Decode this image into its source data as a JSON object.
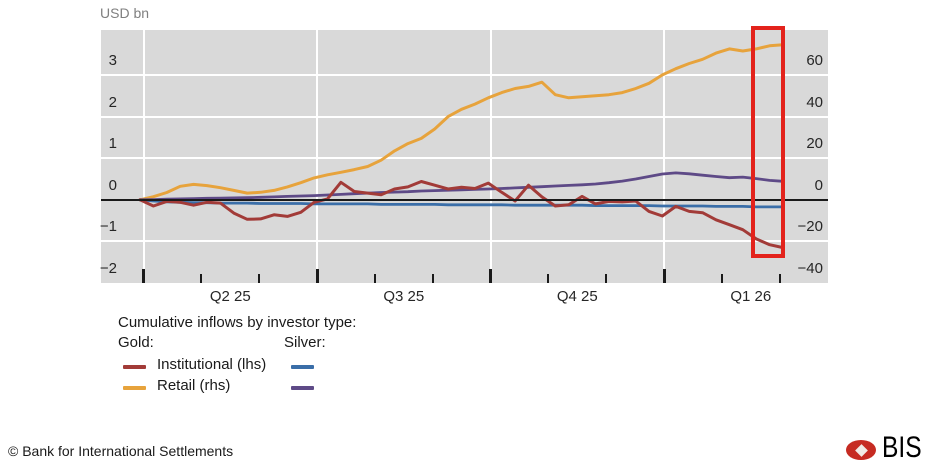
{
  "unit_label": "USD bn",
  "legend": {
    "title": "Cumulative inflows by investor type:",
    "group_gold": "Gold:",
    "group_silver": "Silver:",
    "rows": [
      {
        "label": "Institutional (lhs)"
      },
      {
        "label": "Retail (rhs)"
      }
    ]
  },
  "annotation": {
    "type": "highlight-box",
    "color": "#e3231c",
    "note": "red rectangle highlighting the most recent data points"
  },
  "footer": {
    "copyright": "© Bank for International Settlements",
    "logo_text": "BIS"
  },
  "colors": {
    "plot_background": "#d9d9d9",
    "gridline": "#ffffff",
    "zero_line": "#1a1a1a",
    "axis_text": "#262626",
    "unit_text": "#7f7f7f"
  },
  "chart_data": {
    "type": "line",
    "title": "Cumulative inflows by investor type",
    "unit": "USD bn",
    "grid": true,
    "legend_position": "bottom-left",
    "x": {
      "frequency": "weekly",
      "quarter_tick_labels": [
        "Q2 25",
        "Q3 25",
        "Q4 25",
        "Q1 26"
      ]
    },
    "left_axis": {
      "ticks": [
        3,
        2,
        1,
        0,
        -1,
        -2
      ],
      "range": [
        -2,
        4.08
      ],
      "unit": "USD bn"
    },
    "right_axis": {
      "ticks": [
        60,
        40,
        20,
        0,
        -20,
        -40
      ],
      "range": [
        -40,
        81.6
      ]
    },
    "series": [
      {
        "name": "Gold: Institutional (lhs)",
        "axis": "lhs",
        "color": "#a23b38",
        "values": [
          0,
          -0.15,
          -0.04,
          -0.06,
          -0.13,
          -0.06,
          -0.08,
          -0.32,
          -0.47,
          -0.46,
          -0.36,
          -0.4,
          -0.3,
          -0.06,
          0.02,
          0.42,
          0.2,
          0.16,
          0.12,
          0.26,
          0.31,
          0.44,
          0.35,
          0.26,
          0.3,
          0.27,
          0.4,
          0.18,
          -0.03,
          0.35,
          0.07,
          -0.15,
          -0.12,
          0.08,
          -0.1,
          -0.04,
          -0.05,
          -0.03,
          -0.28,
          -0.39,
          -0.16,
          -0.28,
          -0.31,
          -0.48,
          -0.6,
          -0.72,
          -0.94,
          -1.08,
          -1.15
        ]
      },
      {
        "name": "Gold: Retail (rhs)",
        "axis": "rhs",
        "color": "#e7a33c",
        "values": [
          0,
          1.5,
          3.5,
          6.5,
          7.4,
          6.8,
          5.8,
          4.5,
          3.2,
          3.6,
          4.5,
          6.2,
          8.2,
          10.5,
          12.0,
          13.2,
          14.5,
          16.0,
          19.0,
          23.5,
          27.0,
          29.5,
          34.0,
          40.0,
          43.5,
          46.0,
          49.0,
          51.5,
          53.5,
          54.5,
          56.5,
          50.5,
          49.0,
          49.5,
          50.0,
          50.5,
          51.5,
          53.5,
          56.0,
          60.0,
          63.0,
          65.5,
          67.5,
          70.5,
          72.5,
          71.5,
          72.5,
          74.0,
          74.5
        ]
      },
      {
        "name": "Silver: Institutional (lhs)",
        "axis": "lhs",
        "color": "#3a6ea8",
        "values": [
          0,
          -0.03,
          -0.05,
          -0.06,
          -0.07,
          -0.07,
          -0.08,
          -0.08,
          -0.08,
          -0.09,
          -0.09,
          -0.09,
          -0.09,
          -0.1,
          -0.1,
          -0.1,
          -0.1,
          -0.1,
          -0.11,
          -0.11,
          -0.11,
          -0.11,
          -0.11,
          -0.12,
          -0.12,
          -0.12,
          -0.12,
          -0.12,
          -0.13,
          -0.13,
          -0.13,
          -0.13,
          -0.13,
          -0.13,
          -0.14,
          -0.14,
          -0.14,
          -0.14,
          -0.14,
          -0.15,
          -0.15,
          -0.15,
          -0.15,
          -0.16,
          -0.16,
          -0.16,
          -0.17,
          -0.17,
          -0.17
        ]
      },
      {
        "name": "Silver: Retail (rhs)",
        "axis": "rhs",
        "color": "#5e4a87",
        "values": [
          0,
          0.1,
          0.3,
          0.4,
          0.5,
          0.7,
          0.8,
          0.9,
          1.0,
          1.2,
          1.4,
          1.6,
          1.8,
          2.0,
          2.3,
          2.6,
          2.9,
          3.2,
          3.5,
          3.7,
          3.9,
          4.2,
          4.4,
          4.6,
          4.8,
          5.0,
          5.2,
          5.4,
          5.7,
          6.0,
          6.3,
          6.6,
          6.9,
          7.2,
          7.6,
          8.2,
          9.0,
          10.0,
          11.2,
          12.4,
          12.9,
          12.5,
          11.8,
          11.2,
          10.6,
          10.9,
          10.2,
          9.3,
          8.9
        ]
      }
    ]
  }
}
